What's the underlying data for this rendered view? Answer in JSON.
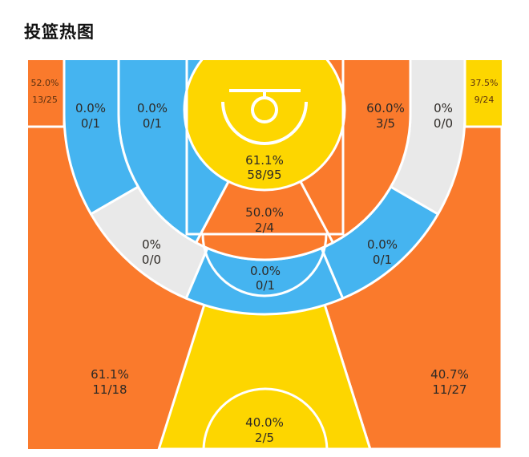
{
  "title": "投篮热图",
  "colors": {
    "orange": "#FA7A2C",
    "yellow": "#FDD600",
    "blue": "#45B4F0",
    "gray": "#E9E9E9",
    "lines": "#FFFFFF"
  },
  "zones": {
    "left_corner_three": {
      "pct": "52.0%",
      "count": "13/25",
      "color": "#FA7A2C"
    },
    "right_corner_three": {
      "pct": "37.5%",
      "count": "9/24",
      "color": "#FDD600"
    },
    "left_wing_three": {
      "pct": "61.1%",
      "count": "11/18",
      "color": "#FA7A2C"
    },
    "right_wing_three": {
      "pct": "40.7%",
      "count": "11/27",
      "color": "#FA7A2C"
    },
    "top_three": {
      "pct": "40.0%",
      "count": "2/5",
      "color": "#FDD600"
    },
    "left_baseline_long_two": {
      "pct": "0.0%",
      "count": "0/1",
      "color": "#45B4F0"
    },
    "left_wing_long_two": {
      "pct": "0%",
      "count": "0/0",
      "color": "#E9E9E9"
    },
    "top_long_two": {
      "pct": "0.0%",
      "count": "0/1",
      "color": "#45B4F0"
    },
    "right_wing_long_two": {
      "pct": "0.0%",
      "count": "0/1",
      "color": "#45B4F0"
    },
    "right_baseline_long_two": {
      "pct": "0%",
      "count": "0/0",
      "color": "#E9E9E9"
    },
    "left_mid_range": {
      "pct": "0.0%",
      "count": "0/1",
      "color": "#45B4F0"
    },
    "center_mid_range": {
      "pct": "50.0%",
      "count": "2/4",
      "color": "#FA7A2C"
    },
    "right_mid_range": {
      "pct": "60.0%",
      "count": "3/5",
      "color": "#FA7A2C"
    },
    "restricted_area": {
      "pct": "61.1%",
      "count": "58/95",
      "color": "#FDD600"
    }
  }
}
